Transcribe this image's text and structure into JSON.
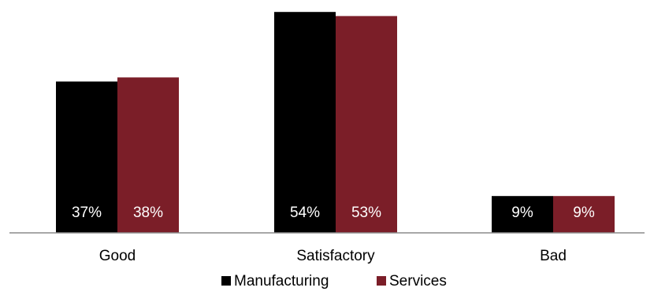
{
  "chart_data": {
    "type": "bar",
    "categories": [
      "Good",
      "Satisfactory",
      "Bad"
    ],
    "series": [
      {
        "name": "Manufacturing",
        "values": [
          37,
          54,
          9
        ],
        "labels": [
          "37%",
          "54%",
          "9%"
        ],
        "color": "#000000"
      },
      {
        "name": "Services",
        "values": [
          38,
          53,
          9
        ],
        "labels": [
          "38%",
          "53%",
          "9%"
        ],
        "color": "#7b1e28"
      }
    ],
    "title": "",
    "xlabel": "",
    "ylabel": "",
    "ylim": [
      0,
      55
    ],
    "grid": false,
    "legend_position": "bottom"
  }
}
